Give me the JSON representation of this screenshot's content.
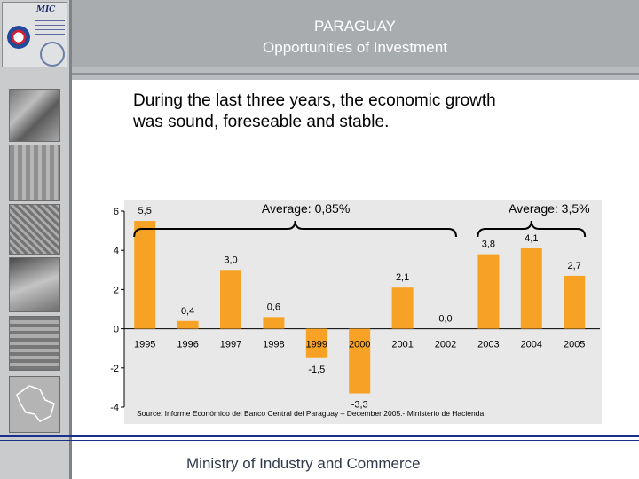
{
  "logo": {
    "text": "MIC"
  },
  "header": {
    "title_line1": "PARAGUAY",
    "title_line2": "Opportunities of Investment"
  },
  "subtitle": {
    "line1": "During the last three years, the economic growth",
    "line2": "was sound, foreseable and stable."
  },
  "footer": {
    "ministry": "Ministry of Industry and Commerce"
  },
  "colors": {
    "bar": "#f7a224",
    "header_text": "#ffffff",
    "footer_rule": "#1a2f8a"
  },
  "chart_data": {
    "type": "bar",
    "categories": [
      "1995",
      "1996",
      "1997",
      "1998",
      "1999",
      "2000",
      "2001",
      "2002",
      "2003",
      "2004",
      "2005"
    ],
    "values": [
      5.5,
      0.4,
      3.0,
      0.6,
      -1.5,
      -3.3,
      2.1,
      0.0,
      3.8,
      4.1,
      2.7
    ],
    "value_labels": [
      "5,5",
      "0,4",
      "3,0",
      "0,6",
      "-1,5",
      "-3,3",
      "2,1",
      "0,0",
      "3,8",
      "4,1",
      "2,7"
    ],
    "yticks": [
      "-4",
      "-2",
      "0",
      "2",
      "4",
      "6"
    ],
    "ylim": [
      -4,
      6
    ],
    "grid": false,
    "annotations": [
      {
        "text": "Average: 0,85%",
        "span": [
          "1995",
          "2002"
        ]
      },
      {
        "text": "Average: 3,5%",
        "span": [
          "2003",
          "2005"
        ]
      }
    ],
    "source": "Source: Informe Económico del Banco Central del Paraguay – December 2005.-  Ministerio de Hacienda."
  }
}
